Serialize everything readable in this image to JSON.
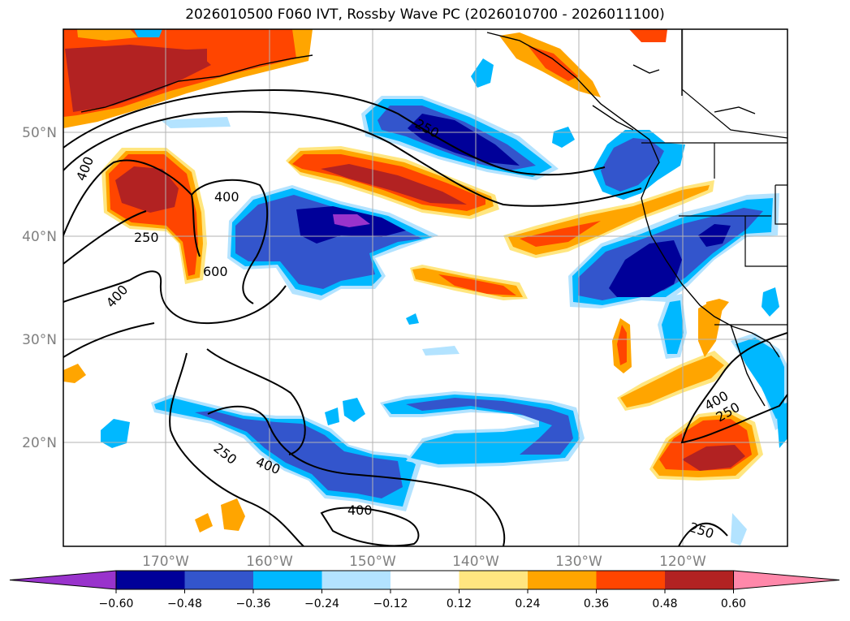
{
  "title": "2026010500 F060 IVT, Rossby Wave PC (2026010700 - 2026011100)",
  "map": {
    "lon_labels": [
      "170°W",
      "160°W",
      "150°W",
      "140°W",
      "130°W",
      "120°W"
    ],
    "lat_labels": [
      "20°N",
      "30°N",
      "40°N",
      "50°N"
    ],
    "contour_labels": [
      "400",
      "250",
      "400",
      "600",
      "400",
      "250",
      "250",
      "400",
      "400",
      "400",
      "250",
      "250"
    ],
    "lon_range": [
      "180°W",
      "110°W"
    ],
    "lat_range": [
      "10°N",
      "60°N"
    ]
  },
  "colorbar": {
    "ticks": [
      "−0.60",
      "−0.48",
      "−0.36",
      "−0.24",
      "−0.12",
      "0.12",
      "0.24",
      "0.36",
      "0.48",
      "0.60"
    ],
    "colors": {
      "below_min": "#9933cc",
      "n060": "#000099",
      "n048": "#3355cc",
      "n036": "#00b8ff",
      "n024": "#b3e3ff",
      "zero": "#ffffff",
      "p012": "#ffe680",
      "p024": "#ffa500",
      "p036": "#ff4500",
      "p048": "#b22222",
      "above_max": "#ff88aa"
    }
  }
}
